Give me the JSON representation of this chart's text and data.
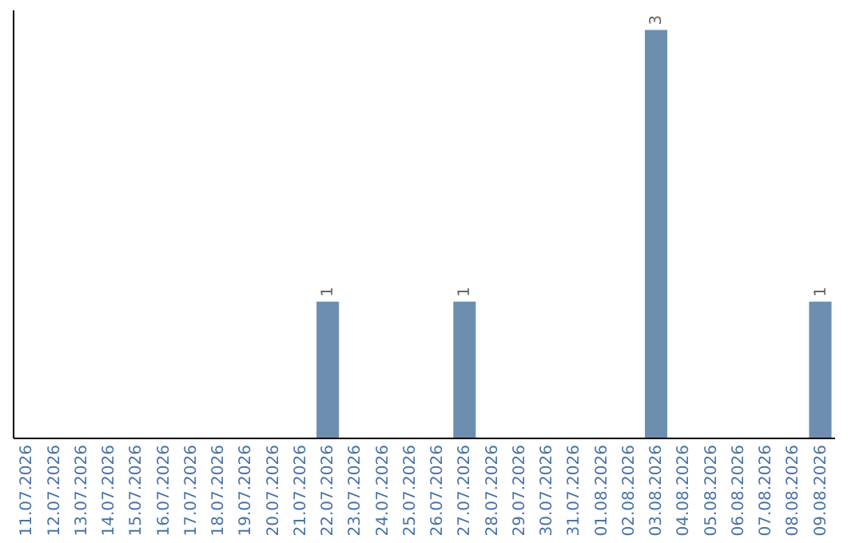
{
  "chart_data": {
    "type": "bar",
    "categories": [
      "11.07.2026",
      "12.07.2026",
      "13.07.2026",
      "14.07.2026",
      "15.07.2026",
      "16.07.2026",
      "17.07.2026",
      "18.07.2026",
      "19.07.2026",
      "20.07.2026",
      "21.07.2026",
      "22.07.2026",
      "23.07.2026",
      "24.07.2026",
      "25.07.2026",
      "26.07.2026",
      "27.07.2026",
      "28.07.2026",
      "29.07.2026",
      "30.07.2026",
      "31.07.2026",
      "01.08.2026",
      "02.08.2026",
      "03.08.2026",
      "04.08.2026",
      "05.08.2026",
      "06.08.2026",
      "07.08.2026",
      "08.08.2026",
      "09.08.2026"
    ],
    "values": [
      0,
      0,
      0,
      0,
      0,
      0,
      0,
      0,
      0,
      0,
      0,
      1,
      0,
      0,
      0,
      0,
      1,
      0,
      0,
      0,
      0,
      0,
      0,
      3,
      0,
      0,
      0,
      0,
      0,
      1
    ],
    "value_labels": [
      null,
      null,
      null,
      null,
      null,
      null,
      null,
      null,
      null,
      null,
      null,
      "1",
      null,
      null,
      null,
      null,
      "1",
      null,
      null,
      null,
      null,
      null,
      null,
      "3",
      null,
      null,
      null,
      null,
      null,
      "1"
    ],
    "color": "#6d8eae"
  }
}
